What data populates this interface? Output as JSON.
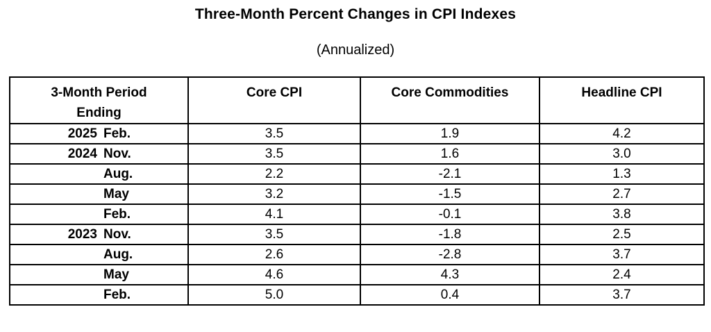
{
  "page": {
    "title": "Three-Month Percent Changes in CPI Indexes",
    "subtitle": "(Annualized)"
  },
  "table": {
    "columns": [
      "3-Month Period Ending",
      "Core CPI",
      "Core Commodities",
      "Headline CPI"
    ],
    "rows": [
      {
        "year": "2025",
        "month": "Feb.",
        "core_cpi": "3.5",
        "core_commodities": "1.9",
        "headline_cpi": "4.2"
      },
      {
        "year": "2024",
        "month": "Nov.",
        "core_cpi": "3.5",
        "core_commodities": "1.6",
        "headline_cpi": "3.0"
      },
      {
        "year": "",
        "month": "Aug.",
        "core_cpi": "2.2",
        "core_commodities": "-2.1",
        "headline_cpi": "1.3"
      },
      {
        "year": "",
        "month": "May",
        "core_cpi": "3.2",
        "core_commodities": "-1.5",
        "headline_cpi": "2.7"
      },
      {
        "year": "",
        "month": "Feb.",
        "core_cpi": "4.1",
        "core_commodities": "-0.1",
        "headline_cpi": "3.8"
      },
      {
        "year": "2023",
        "month": "Nov.",
        "core_cpi": "3.5",
        "core_commodities": "-1.8",
        "headline_cpi": "2.5"
      },
      {
        "year": "",
        "month": "Aug.",
        "core_cpi": "2.6",
        "core_commodities": "-2.8",
        "headline_cpi": "3.7"
      },
      {
        "year": "",
        "month": "May",
        "core_cpi": "4.6",
        "core_commodities": "4.3",
        "headline_cpi": "2.4"
      },
      {
        "year": "",
        "month": "Feb.",
        "core_cpi": "5.0",
        "core_commodities": "0.4",
        "headline_cpi": "3.7"
      }
    ]
  },
  "colors": {
    "text": "#000000",
    "background": "#ffffff",
    "border": "#000000"
  },
  "chart_data": {
    "type": "table",
    "title": "Three-Month Percent Changes in CPI Indexes",
    "subtitle": "(Annualized)",
    "columns": [
      "3-Month Period Ending",
      "Core CPI",
      "Core Commodities",
      "Headline CPI"
    ],
    "rows": [
      [
        "2025 Feb.",
        3.5,
        1.9,
        4.2
      ],
      [
        "2024 Nov.",
        3.5,
        1.6,
        3.0
      ],
      [
        "Aug.",
        2.2,
        -2.1,
        1.3
      ],
      [
        "May",
        3.2,
        -1.5,
        2.7
      ],
      [
        "Feb.",
        4.1,
        -0.1,
        3.8
      ],
      [
        "2023 Nov.",
        3.5,
        -1.8,
        2.5
      ],
      [
        "Aug.",
        2.6,
        -2.8,
        3.7
      ],
      [
        "May",
        4.6,
        4.3,
        2.4
      ],
      [
        "Feb.",
        5.0,
        0.4,
        3.7
      ]
    ]
  }
}
